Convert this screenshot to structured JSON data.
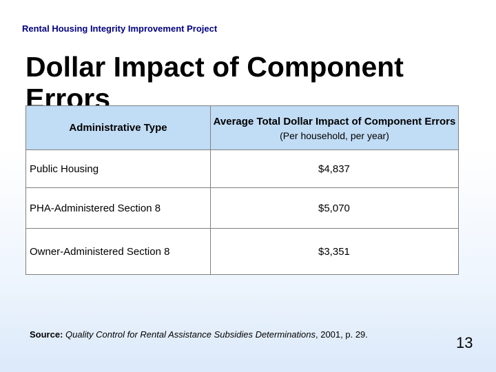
{
  "header": {
    "project": "Rental Housing Integrity Improvement Project"
  },
  "slide": {
    "title": "Dollar Impact of Component Errors"
  },
  "table": {
    "headers": {
      "type": "Administrative Type",
      "impact": "Average Total Dollar Impact of Component Errors",
      "impact_sub": "(Per household, per year)"
    },
    "rows": [
      {
        "type": "Public Housing",
        "amount": "$4,837"
      },
      {
        "type": "PHA-Administered Section 8",
        "amount": "$5,070"
      },
      {
        "type": "Owner-Administered Section 8",
        "amount": "$3,351"
      }
    ]
  },
  "source": {
    "label": "Source:",
    "title": "Quality Control for Rental Assistance Subsidies Determinations",
    "rest": ", 2001, p. 29."
  },
  "page_number": "13"
}
